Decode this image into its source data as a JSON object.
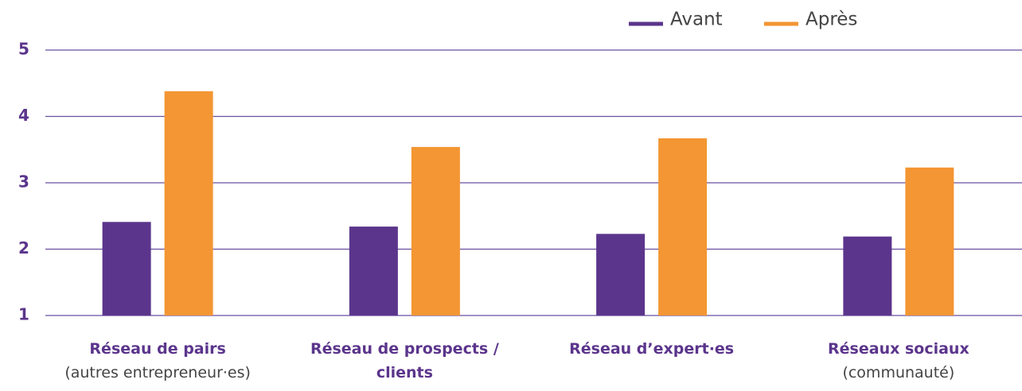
{
  "chart_data": {
    "type": "bar",
    "categories": [
      "Réseau de pairs",
      "Réseau de prospects / clients",
      "Réseau d’expert·es",
      "Réseaux sociaux"
    ],
    "category_notes": [
      "(autres entrepreneur·es)",
      null,
      null,
      "(communauté)"
    ],
    "series": [
      {
        "name": "Avant",
        "color": "#5b358c",
        "values": [
          2.41,
          2.34,
          2.23,
          2.19
        ]
      },
      {
        "name": "Après",
        "color": "#f39633",
        "values": [
          4.38,
          3.54,
          3.67,
          3.23
        ]
      }
    ],
    "ylim": [
      1,
      5
    ],
    "yticks": [
      1,
      2,
      3,
      4,
      5
    ],
    "grid": true,
    "legend": "top-right"
  }
}
